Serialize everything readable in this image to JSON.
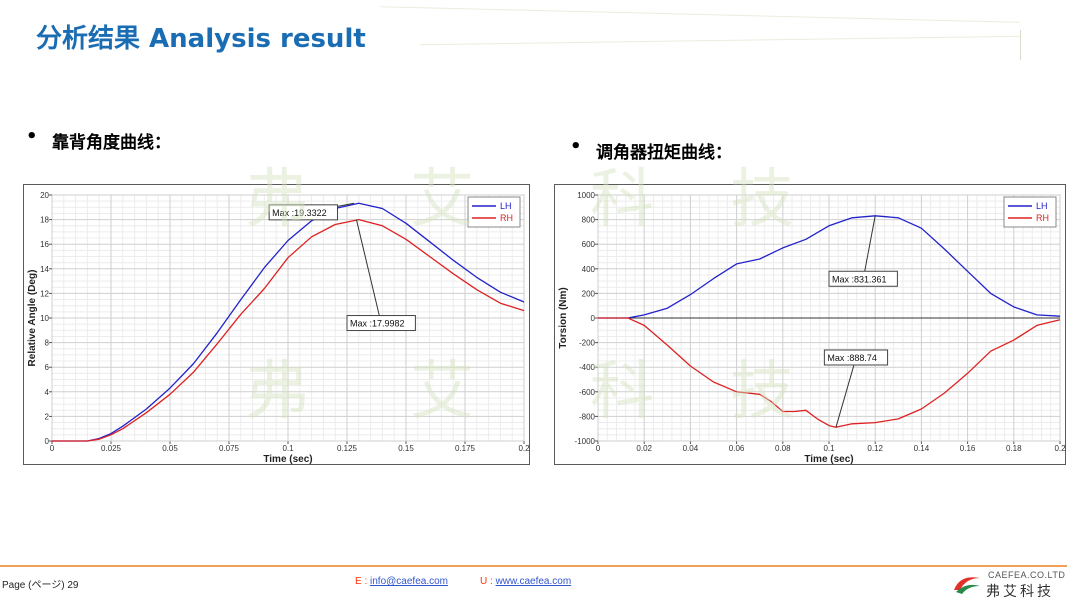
{
  "page": {
    "title": "分析结果 Analysis result",
    "left_heading": "靠背角度曲线：",
    "right_heading": "调角器扭矩曲线："
  },
  "watermark": {
    "chars": [
      "弗",
      "艾",
      "科",
      "技"
    ]
  },
  "footer": {
    "page_label": "Page (ページ)  29",
    "email_prefix": "E : ",
    "email": "info@caefea.com",
    "url_prefix": "U : ",
    "url": "www.caefea.com"
  },
  "logo": {
    "top_text": "CAEFEA.CO.LTD",
    "cn_text": "弗艾科技"
  },
  "chart_data": [
    {
      "type": "line",
      "xlabel": "Time (sec)",
      "ylabel": "Relative Angle (Deg)",
      "xlim": [
        0,
        0.2
      ],
      "ylim": [
        0,
        20
      ],
      "x_ticks": [
        0,
        0.025,
        0.05,
        0.075,
        0.1,
        0.125,
        0.15,
        0.175,
        0.2
      ],
      "x_tick_labels": [
        "0",
        "0.025",
        "0.05",
        "0.075",
        "0.1",
        "0.125",
        "0.15",
        "0.175",
        "0.2"
      ],
      "y_ticks": [
        0,
        2,
        4,
        6,
        8,
        10,
        12,
        14,
        16,
        18,
        20
      ],
      "y_tick_labels": [
        "0",
        "2",
        "4",
        "6",
        "8",
        "10",
        "12",
        "14",
        "16",
        "18",
        "20"
      ],
      "grid": true,
      "legend_position": "top-right",
      "series": [
        {
          "name": "LH",
          "color": "#2222cc",
          "x": [
            0,
            0.015,
            0.02,
            0.025,
            0.03,
            0.04,
            0.05,
            0.06,
            0.07,
            0.08,
            0.09,
            0.1,
            0.11,
            0.12,
            0.13,
            0.14,
            0.15,
            0.16,
            0.17,
            0.18,
            0.19,
            0.2
          ],
          "y": [
            0,
            0,
            0.2,
            0.6,
            1.2,
            2.6,
            4.3,
            6.3,
            8.8,
            11.5,
            14.1,
            16.3,
            17.9,
            18.9,
            19.33,
            18.9,
            17.7,
            16.2,
            14.7,
            13.3,
            12.1,
            11.3
          ]
        },
        {
          "name": "RH",
          "color": "#dd2222",
          "x": [
            0,
            0.015,
            0.02,
            0.025,
            0.03,
            0.04,
            0.05,
            0.06,
            0.07,
            0.08,
            0.09,
            0.1,
            0.11,
            0.12,
            0.13,
            0.14,
            0.15,
            0.16,
            0.17,
            0.18,
            0.19,
            0.2
          ],
          "y": [
            0,
            0,
            0.15,
            0.5,
            1.0,
            2.3,
            3.8,
            5.6,
            7.9,
            10.3,
            12.4,
            14.9,
            16.6,
            17.6,
            18.0,
            17.5,
            16.4,
            15.0,
            13.6,
            12.3,
            11.2,
            10.6
          ]
        }
      ],
      "annotations": [
        {
          "text": "Max :19.3322",
          "x": 0.128,
          "y": 19.33,
          "box_x": 0.092,
          "box_y": 19.2
        },
        {
          "text": "Max :17.9982",
          "x": 0.129,
          "y": 18.0,
          "box_x": 0.125,
          "box_y": 10.2
        }
      ]
    },
    {
      "type": "line",
      "xlabel": "Time (sec)",
      "ylabel": "Torsion (Nm)",
      "xlim": [
        0,
        0.2
      ],
      "ylim": [
        -1000,
        1000
      ],
      "x_ticks": [
        0,
        0.02,
        0.04,
        0.06,
        0.08,
        0.1,
        0.12,
        0.14,
        0.16,
        0.18,
        0.2
      ],
      "x_tick_labels": [
        "0",
        "0.02",
        "0.04",
        "0.06",
        "0.08",
        "0.1",
        "0.12",
        "0.14",
        "0.16",
        "0.18",
        "0.2"
      ],
      "y_ticks": [
        -1000,
        -800,
        -600,
        -400,
        -200,
        0,
        200,
        400,
        600,
        800,
        1000
      ],
      "y_tick_labels": [
        "-1000",
        "-800",
        "-600",
        "-400",
        "-200",
        "0",
        "200",
        "400",
        "600",
        "800",
        "1000"
      ],
      "grid": true,
      "legend_position": "top-right",
      "series": [
        {
          "name": "LH",
          "color": "#2222cc",
          "x": [
            0,
            0.013,
            0.02,
            0.03,
            0.04,
            0.05,
            0.06,
            0.07,
            0.08,
            0.09,
            0.1,
            0.11,
            0.12,
            0.13,
            0.14,
            0.15,
            0.16,
            0.17,
            0.18,
            0.19,
            0.2
          ],
          "y": [
            0,
            0,
            25,
            80,
            190,
            320,
            440,
            480,
            570,
            640,
            750,
            815,
            831,
            815,
            730,
            560,
            380,
            200,
            90,
            25,
            15
          ]
        },
        {
          "name": "RH",
          "color": "#dd2222",
          "x": [
            0,
            0.013,
            0.02,
            0.03,
            0.04,
            0.05,
            0.06,
            0.07,
            0.075,
            0.08,
            0.085,
            0.09,
            0.095,
            0.1,
            0.103,
            0.11,
            0.12,
            0.13,
            0.14,
            0.15,
            0.16,
            0.17,
            0.18,
            0.19,
            0.2
          ],
          "y": [
            0,
            0,
            -60,
            -220,
            -390,
            -520,
            -600,
            -620,
            -680,
            -760,
            -760,
            -750,
            -820,
            -875,
            -888,
            -860,
            -850,
            -820,
            -740,
            -610,
            -450,
            -270,
            -180,
            -60,
            -15
          ]
        }
      ],
      "annotations": [
        {
          "text": "Max :831.361",
          "x": 0.12,
          "y": 831.4,
          "box_x": 0.1,
          "box_y": 380
        },
        {
          "text": "Max :888.74",
          "x": 0.103,
          "y": -888.7,
          "box_x": 0.098,
          "box_y": -260
        }
      ]
    }
  ]
}
